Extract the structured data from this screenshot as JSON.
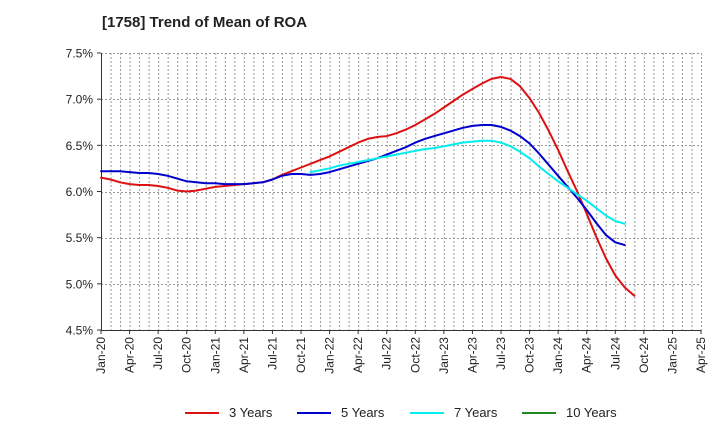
{
  "chart_data": {
    "type": "line",
    "title": "[1758]  Trend of Mean of ROA",
    "xlabel": "",
    "ylabel": "",
    "ylim": [
      4.5,
      7.5
    ],
    "y_ticks": [
      4.5,
      5.0,
      5.5,
      6.0,
      6.5,
      7.0,
      7.5
    ],
    "y_tick_labels": [
      "4.5%",
      "5.0%",
      "5.5%",
      "6.0%",
      "6.5%",
      "7.0%",
      "7.5%"
    ],
    "x_tick_labels": [
      "Jan-20",
      "Apr-20",
      "Jul-20",
      "Oct-20",
      "Jan-21",
      "Apr-21",
      "Jul-21",
      "Oct-21",
      "Jan-22",
      "Apr-22",
      "Jul-22",
      "Oct-22",
      "Jan-23",
      "Apr-23",
      "Jul-23",
      "Oct-23",
      "Jan-24",
      "Apr-24",
      "Jul-24",
      "Oct-24",
      "Jan-25",
      "Apr-25"
    ],
    "grid": true,
    "legend_position": "bottom",
    "series": [
      {
        "name": "3 Years",
        "color": "#dd1111",
        "points": [
          [
            0,
            6.15
          ],
          [
            1,
            6.13
          ],
          [
            2,
            6.1
          ],
          [
            3,
            6.08
          ],
          [
            4,
            6.07
          ],
          [
            5,
            6.07
          ],
          [
            6,
            6.06
          ],
          [
            7,
            6.04
          ],
          [
            8,
            6.01
          ],
          [
            9,
            6.0
          ],
          [
            10,
            6.01
          ],
          [
            11,
            6.03
          ],
          [
            12,
            6.05
          ],
          [
            13,
            6.06
          ],
          [
            14,
            6.07
          ],
          [
            15,
            6.08
          ],
          [
            16,
            6.09
          ],
          [
            17,
            6.1
          ],
          [
            18,
            6.13
          ],
          [
            19,
            6.18
          ],
          [
            20,
            6.22
          ],
          [
            21,
            6.26
          ],
          [
            22,
            6.3
          ],
          [
            23,
            6.34
          ],
          [
            24,
            6.38
          ],
          [
            25,
            6.43
          ],
          [
            26,
            6.48
          ],
          [
            27,
            6.53
          ],
          [
            28,
            6.57
          ],
          [
            29,
            6.59
          ],
          [
            30,
            6.6
          ],
          [
            31,
            6.63
          ],
          [
            32,
            6.67
          ],
          [
            33,
            6.72
          ],
          [
            34,
            6.78
          ],
          [
            35,
            6.84
          ],
          [
            36,
            6.91
          ],
          [
            37,
            6.98
          ],
          [
            38,
            7.05
          ],
          [
            39,
            7.11
          ],
          [
            40,
            7.17
          ],
          [
            41,
            7.22
          ],
          [
            42,
            7.24
          ],
          [
            43,
            7.22
          ],
          [
            44,
            7.14
          ],
          [
            45,
            7.01
          ],
          [
            46,
            6.85
          ],
          [
            47,
            6.66
          ],
          [
            48,
            6.45
          ],
          [
            49,
            6.22
          ],
          [
            50,
            6.0
          ],
          [
            51,
            5.76
          ],
          [
            52,
            5.51
          ],
          [
            53,
            5.28
          ],
          [
            54,
            5.09
          ],
          [
            55,
            4.96
          ],
          [
            56,
            4.87
          ]
        ]
      },
      {
        "name": "5 Years",
        "color": "#0000cc",
        "points": [
          [
            0,
            6.22
          ],
          [
            1,
            6.22
          ],
          [
            2,
            6.22
          ],
          [
            3,
            6.21
          ],
          [
            4,
            6.2
          ],
          [
            5,
            6.2
          ],
          [
            6,
            6.19
          ],
          [
            7,
            6.17
          ],
          [
            8,
            6.14
          ],
          [
            9,
            6.11
          ],
          [
            10,
            6.1
          ],
          [
            11,
            6.09
          ],
          [
            12,
            6.09
          ],
          [
            13,
            6.08
          ],
          [
            14,
            6.08
          ],
          [
            15,
            6.08
          ],
          [
            16,
            6.09
          ],
          [
            17,
            6.1
          ],
          [
            18,
            6.13
          ],
          [
            19,
            6.17
          ],
          [
            20,
            6.19
          ],
          [
            21,
            6.19
          ],
          [
            22,
            6.18
          ],
          [
            23,
            6.19
          ],
          [
            24,
            6.21
          ],
          [
            25,
            6.24
          ],
          [
            26,
            6.27
          ],
          [
            27,
            6.3
          ],
          [
            28,
            6.33
          ],
          [
            29,
            6.36
          ],
          [
            30,
            6.4
          ],
          [
            31,
            6.44
          ],
          [
            32,
            6.48
          ],
          [
            33,
            6.53
          ],
          [
            34,
            6.57
          ],
          [
            35,
            6.6
          ],
          [
            36,
            6.63
          ],
          [
            37,
            6.66
          ],
          [
            38,
            6.69
          ],
          [
            39,
            6.71
          ],
          [
            40,
            6.72
          ],
          [
            41,
            6.72
          ],
          [
            42,
            6.7
          ],
          [
            43,
            6.66
          ],
          [
            44,
            6.6
          ],
          [
            45,
            6.52
          ],
          [
            46,
            6.41
          ],
          [
            47,
            6.29
          ],
          [
            48,
            6.17
          ],
          [
            49,
            6.05
          ],
          [
            50,
            5.93
          ],
          [
            51,
            5.8
          ],
          [
            52,
            5.66
          ],
          [
            53,
            5.53
          ],
          [
            54,
            5.45
          ],
          [
            55,
            5.42
          ]
        ]
      },
      {
        "name": "7 Years",
        "color": "#00eeee",
        "points": [
          [
            22,
            6.21
          ],
          [
            23,
            6.23
          ],
          [
            24,
            6.25
          ],
          [
            25,
            6.28
          ],
          [
            26,
            6.3
          ],
          [
            27,
            6.32
          ],
          [
            28,
            6.34
          ],
          [
            29,
            6.36
          ],
          [
            30,
            6.38
          ],
          [
            31,
            6.4
          ],
          [
            32,
            6.42
          ],
          [
            33,
            6.44
          ],
          [
            34,
            6.46
          ],
          [
            35,
            6.47
          ],
          [
            36,
            6.49
          ],
          [
            37,
            6.51
          ],
          [
            38,
            6.53
          ],
          [
            39,
            6.54
          ],
          [
            40,
            6.55
          ],
          [
            41,
            6.55
          ],
          [
            42,
            6.53
          ],
          [
            43,
            6.49
          ],
          [
            44,
            6.43
          ],
          [
            45,
            6.36
          ],
          [
            46,
            6.27
          ],
          [
            47,
            6.19
          ],
          [
            48,
            6.11
          ],
          [
            49,
            6.04
          ],
          [
            50,
            5.97
          ],
          [
            51,
            5.9
          ],
          [
            52,
            5.82
          ],
          [
            53,
            5.74
          ],
          [
            54,
            5.68
          ],
          [
            55,
            5.65
          ]
        ]
      },
      {
        "name": "10 Years",
        "color": "#228822",
        "points": []
      }
    ]
  }
}
